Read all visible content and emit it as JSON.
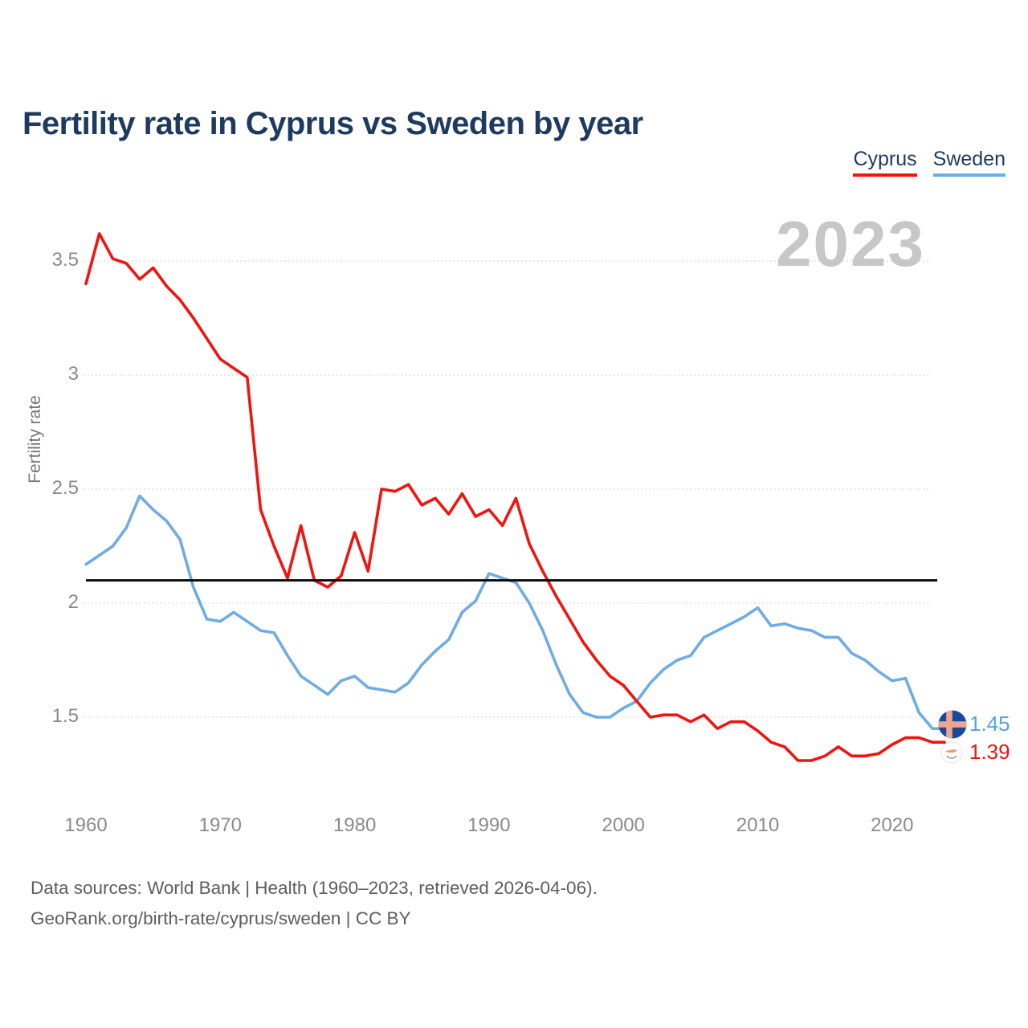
{
  "header": {
    "title": "Fertility rate in Cyprus vs Sweden by year"
  },
  "legend": {
    "items": [
      {
        "label": "Cyprus",
        "color": "#f01410"
      },
      {
        "label": "Sweden",
        "color": "#6face3"
      }
    ]
  },
  "watermark": "2023",
  "chart_data": {
    "type": "line",
    "title": "Fertility rate in Cyprus vs Sweden by year",
    "xlabel": "",
    "ylabel": "Fertility rate",
    "xlim": [
      1960,
      2023
    ],
    "ylim": [
      1.25,
      3.7
    ],
    "grid": "horizontal",
    "legend_position": "top-right",
    "reference_line": {
      "value": 2.1,
      "color": "#0a0a0a"
    },
    "yticks": [
      3.5,
      3,
      2.5,
      2,
      1.5
    ],
    "xticks": [
      1960,
      1970,
      1980,
      1990,
      2000,
      2010,
      2020
    ],
    "x": [
      1960,
      1961,
      1962,
      1963,
      1964,
      1965,
      1966,
      1967,
      1968,
      1969,
      1970,
      1971,
      1972,
      1973,
      1974,
      1975,
      1976,
      1977,
      1978,
      1979,
      1980,
      1981,
      1982,
      1983,
      1984,
      1985,
      1986,
      1987,
      1988,
      1989,
      1990,
      1991,
      1992,
      1993,
      1994,
      1995,
      1996,
      1997,
      1998,
      1999,
      2000,
      2001,
      2002,
      2003,
      2004,
      2005,
      2006,
      2007,
      2008,
      2009,
      2010,
      2011,
      2012,
      2013,
      2014,
      2015,
      2016,
      2017,
      2018,
      2019,
      2020,
      2021,
      2022,
      2023
    ],
    "series": [
      {
        "name": "Sweden",
        "color": "#6face3",
        "end_label": "1.45",
        "values": [
          2.17,
          2.21,
          2.25,
          2.33,
          2.47,
          2.41,
          2.36,
          2.28,
          2.07,
          1.93,
          1.92,
          1.96,
          1.92,
          1.88,
          1.87,
          1.77,
          1.68,
          1.64,
          1.6,
          1.66,
          1.68,
          1.63,
          1.62,
          1.61,
          1.65,
          1.73,
          1.79,
          1.84,
          1.96,
          2.01,
          2.13,
          2.11,
          2.09,
          2.0,
          1.88,
          1.73,
          1.6,
          1.52,
          1.5,
          1.5,
          1.54,
          1.57,
          1.65,
          1.71,
          1.75,
          1.77,
          1.85,
          1.88,
          1.91,
          1.94,
          1.98,
          1.9,
          1.91,
          1.89,
          1.88,
          1.85,
          1.85,
          1.78,
          1.75,
          1.7,
          1.66,
          1.67,
          1.52,
          1.45
        ]
      },
      {
        "name": "Cyprus",
        "color": "#f01410",
        "end_label": "1.39",
        "values": [
          3.4,
          3.62,
          3.51,
          3.49,
          3.42,
          3.47,
          3.39,
          3.33,
          3.25,
          3.16,
          3.07,
          3.03,
          2.99,
          2.41,
          2.25,
          2.11,
          2.34,
          2.1,
          2.07,
          2.12,
          2.31,
          2.14,
          2.5,
          2.49,
          2.52,
          2.43,
          2.46,
          2.39,
          2.48,
          2.38,
          2.41,
          2.34,
          2.46,
          2.26,
          2.14,
          2.03,
          1.93,
          1.83,
          1.75,
          1.68,
          1.64,
          1.57,
          1.5,
          1.51,
          1.51,
          1.48,
          1.51,
          1.45,
          1.48,
          1.48,
          1.44,
          1.39,
          1.37,
          1.31,
          1.31,
          1.33,
          1.37,
          1.33,
          1.33,
          1.34,
          1.38,
          1.41,
          1.41,
          1.39
        ]
      }
    ]
  },
  "end_markers": {
    "sweden": {
      "flag": "sweden-flag-icon",
      "value": "1.45"
    },
    "cyprus": {
      "flag": "cyprus-flag-icon",
      "value": "1.39"
    }
  },
  "footer": {
    "line1": "Data sources: World Bank | Health (1960–2023, retrieved 2026-04-06).",
    "line2": "GeoRank.org/birth-rate/cyprus/sweden | CC BY"
  }
}
